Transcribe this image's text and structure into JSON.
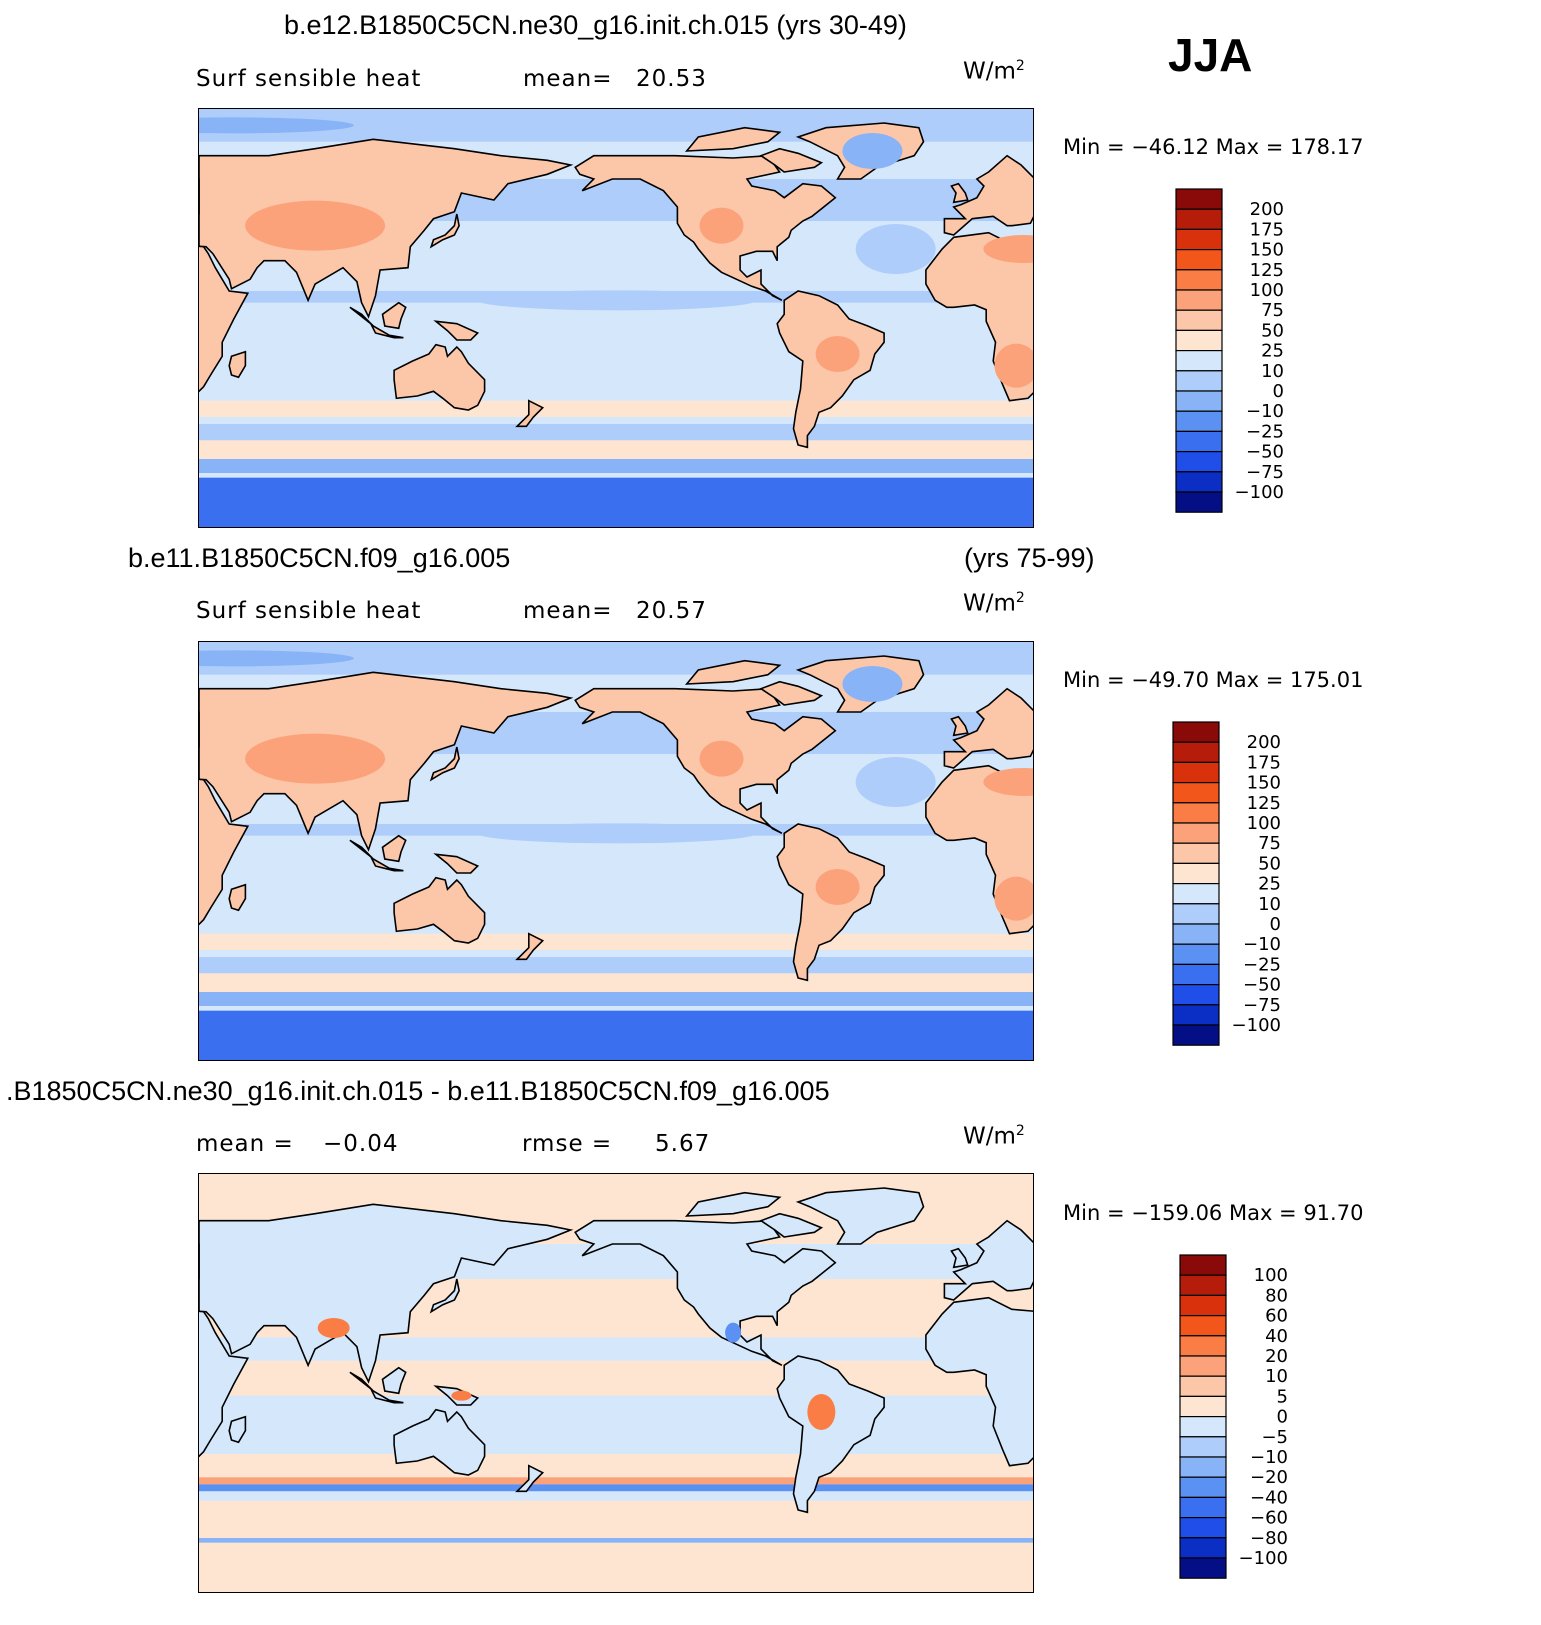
{
  "season": "JJA",
  "panels": [
    {
      "title": "b.e12.B1850C5CN.ne30_g16.init.ch.015 (yrs 30-49)",
      "title_right": "",
      "left_label": "Surf  sensible  heat",
      "stat_label": "mean=",
      "stat_value": "20.53",
      "stat2_label": "",
      "stat2_value": "",
      "units_base": "W/m",
      "units_exp": "2",
      "min_max": "Min  =  −46.12  Max  =  178.17"
    },
    {
      "title": "b.e11.B1850C5CN.f09_g16.005",
      "title_right": "(yrs 75-99)",
      "left_label": "Surf  sensible  heat",
      "stat_label": "mean=",
      "stat_value": "20.57",
      "stat2_label": "",
      "stat2_value": "",
      "units_base": "W/m",
      "units_exp": "2",
      "min_max": "Min  =  −49.70  Max  =  175.01"
    },
    {
      "title": ".B1850C5CN.ne30_g16.init.ch.015 - b.e11.B1850C5CN.f09_g16.005",
      "title_right": "",
      "left_label": "",
      "stat_label": "mean  =",
      "stat_value": "−0.04",
      "stat2_label": "rmse  =",
      "stat2_value": "5.67",
      "units_base": "W/m",
      "units_exp": "2",
      "min_max": "Min  =  −159.06  Max  =    91.70"
    }
  ],
  "chart_data": [
    {
      "type": "heatmap",
      "title": "b.e12.B1850C5CN.ne30_g16.init.ch.015 (yrs 30-49)",
      "variable": "Surf sensible heat",
      "units": "W/m2",
      "mean": 20.53,
      "min": -46.12,
      "max": 178.17,
      "colorbar_levels": [
        "200",
        "175",
        "150",
        "125",
        "100",
        "75",
        "50",
        "25",
        "10",
        "0",
        "−10",
        "−25",
        "−50",
        "−75",
        "−100"
      ],
      "colorbar_colors": [
        "#8a0a0a",
        "#b51d0a",
        "#d9310c",
        "#f3561b",
        "#fa7d45",
        "#fba27a",
        "#fcc6a8",
        "#fde5d2",
        "#d5e8fb",
        "#aecdfa",
        "#88b3f7",
        "#5a91f3",
        "#3a6ff0",
        "#1f4ee8",
        "#0b2fc4",
        "#040f86"
      ]
    },
    {
      "type": "heatmap",
      "title": "b.e11.B1850C5CN.f09_g16.005 (yrs 75-99)",
      "variable": "Surf sensible heat",
      "units": "W/m2",
      "mean": 20.57,
      "min": -49.7,
      "max": 175.01,
      "colorbar_levels": [
        "200",
        "175",
        "150",
        "125",
        "100",
        "75",
        "50",
        "25",
        "10",
        "0",
        "−10",
        "−25",
        "−50",
        "−75",
        "−100"
      ],
      "colorbar_colors": [
        "#8a0a0a",
        "#b51d0a",
        "#d9310c",
        "#f3561b",
        "#fa7d45",
        "#fba27a",
        "#fcc6a8",
        "#fde5d2",
        "#d5e8fb",
        "#aecdfa",
        "#88b3f7",
        "#5a91f3",
        "#3a6ff0",
        "#1f4ee8",
        "#0b2fc4",
        "#040f86"
      ]
    },
    {
      "type": "heatmap",
      "title": ".B1850C5CN.ne30_g16.init.ch.015 - b.e11.B1850C5CN.f09_g16.005",
      "units": "W/m2",
      "mean": -0.04,
      "rmse": 5.67,
      "min": -159.06,
      "max": 91.7,
      "colorbar_levels": [
        "100",
        "80",
        "60",
        "40",
        "20",
        "10",
        "5",
        "0",
        "−5",
        "−10",
        "−20",
        "−40",
        "−60",
        "−80",
        "−100"
      ],
      "colorbar_colors": [
        "#8a0a0a",
        "#b51d0a",
        "#d9310c",
        "#f3561b",
        "#fa7d45",
        "#fba27a",
        "#fcc6a8",
        "#fde5d2",
        "#d5e8fb",
        "#aecdfa",
        "#88b3f7",
        "#5a91f3",
        "#3a6ff0",
        "#1f4ee8",
        "#0b2fc4",
        "#040f86"
      ]
    }
  ]
}
